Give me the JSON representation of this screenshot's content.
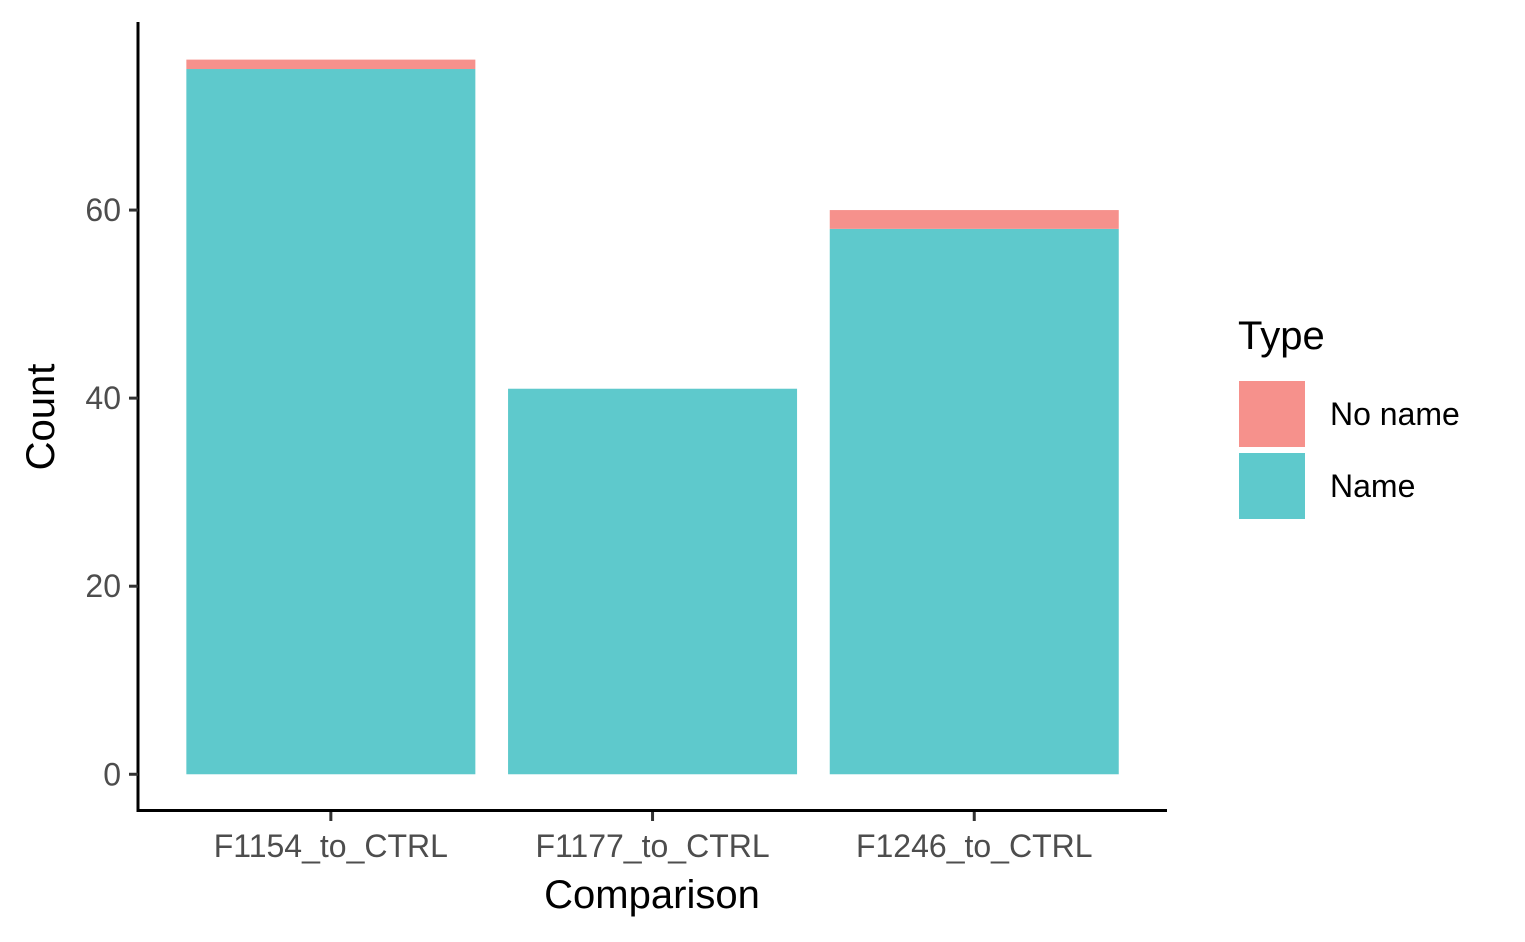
{
  "chart_data": {
    "type": "bar",
    "stacked": true,
    "categories": [
      "F1154_to_CTRL",
      "F1177_to_CTRL",
      "F1246_to_CTRL"
    ],
    "series": [
      {
        "name": "Name",
        "color": "#5ec9cc",
        "values": [
          75,
          41,
          58
        ]
      },
      {
        "name": "No name",
        "color": "#f6918c",
        "values": [
          1,
          0,
          2
        ]
      }
    ],
    "xlabel": "Comparison",
    "ylabel": "Count",
    "ylim": [
      -3.8,
      80
    ],
    "yticks": [
      0,
      20,
      40,
      60
    ],
    "grid": false,
    "legend": {
      "title": "Type",
      "position": "right",
      "entries": [
        {
          "label": "No name",
          "color": "#f6918c"
        },
        {
          "label": "Name",
          "color": "#5ec9cc"
        }
      ]
    }
  }
}
